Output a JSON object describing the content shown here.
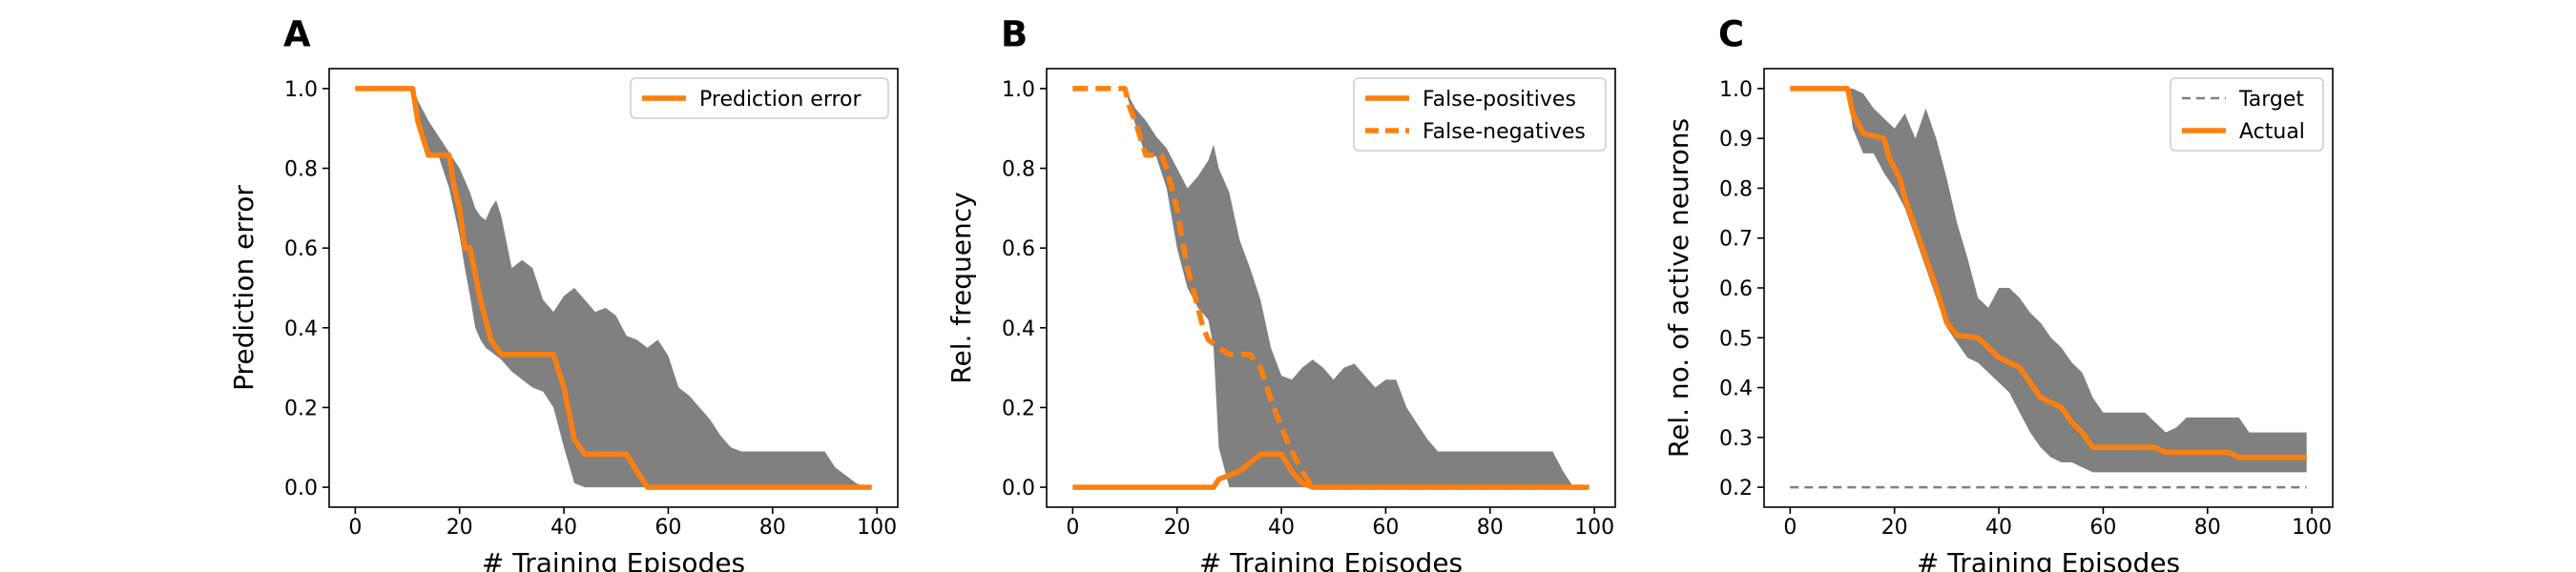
{
  "colors": {
    "line": "#ff7f0e",
    "band": "#808080",
    "target": "#808080"
  },
  "chart_data": [
    {
      "type": "line",
      "panel_letter": "A",
      "xlabel": "# Training Episodes",
      "ylabel": "Prediction error",
      "xlim": [
        -5,
        104
      ],
      "ylim": [
        -0.05,
        1.05
      ],
      "xticks": [
        0,
        20,
        40,
        60,
        80,
        100
      ],
      "xtick_labels": [
        "0",
        "20",
        "40",
        "60",
        "80",
        "100"
      ],
      "yticks": [
        0.0,
        0.2,
        0.4,
        0.6,
        0.8,
        1.0
      ],
      "ytick_labels": [
        "0.0",
        "0.2",
        "0.4",
        "0.6",
        "0.8",
        "1.0"
      ],
      "legend_position": "top-right",
      "series": [
        {
          "name": "Prediction error",
          "style": "solid",
          "x": [
            0,
            11,
            12,
            14,
            18,
            19,
            20,
            21,
            22,
            24,
            26,
            28,
            30,
            32,
            38,
            40,
            42,
            44,
            52,
            54,
            56,
            60,
            80,
            99
          ],
          "y": [
            1.0,
            1.0,
            0.917,
            0.833,
            0.833,
            0.75,
            0.7,
            0.6,
            0.6,
            0.47,
            0.37,
            0.333,
            0.333,
            0.333,
            0.333,
            0.25,
            0.12,
            0.083,
            0.083,
            0.04,
            0.0,
            0.0,
            0.0,
            0.0
          ]
        }
      ],
      "band": {
        "x": [
          0,
          11,
          12,
          14,
          16,
          18,
          20,
          21,
          22,
          23,
          24,
          25,
          26,
          27,
          28,
          30,
          32,
          34,
          36,
          38,
          40,
          42,
          44,
          46,
          48,
          50,
          52,
          54,
          56,
          58,
          60,
          62,
          64,
          66,
          68,
          70,
          72,
          74,
          76,
          78,
          80,
          82,
          84,
          86,
          88,
          90,
          92,
          94,
          96,
          98,
          99
        ],
        "upper": [
          1.0,
          1.0,
          0.97,
          0.92,
          0.88,
          0.84,
          0.8,
          0.77,
          0.74,
          0.7,
          0.68,
          0.67,
          0.7,
          0.72,
          0.68,
          0.55,
          0.57,
          0.55,
          0.47,
          0.44,
          0.48,
          0.5,
          0.47,
          0.44,
          0.45,
          0.43,
          0.38,
          0.37,
          0.35,
          0.37,
          0.33,
          0.25,
          0.23,
          0.2,
          0.17,
          0.13,
          0.1,
          0.09,
          0.09,
          0.09,
          0.09,
          0.09,
          0.09,
          0.09,
          0.09,
          0.09,
          0.05,
          0.03,
          0.01,
          0.0,
          0.0
        ],
        "lower": [
          1.0,
          1.0,
          0.91,
          0.83,
          0.83,
          0.75,
          0.63,
          0.55,
          0.48,
          0.4,
          0.37,
          0.35,
          0.34,
          0.33,
          0.32,
          0.29,
          0.27,
          0.25,
          0.24,
          0.2,
          0.1,
          0.01,
          0.0,
          0.0,
          0.0,
          0.0,
          0.0,
          0.0,
          0.0,
          0.0,
          0.0,
          0.0,
          0.0,
          0.0,
          0.0,
          0.0,
          0.0,
          0.0,
          0.0,
          0.0,
          0.0,
          0.0,
          0.0,
          0.0,
          0.0,
          0.0,
          0.0,
          0.0,
          0.0,
          0.0,
          0.0
        ]
      }
    },
    {
      "type": "line",
      "panel_letter": "B",
      "xlabel": "# Training Episodes",
      "ylabel": "Rel. frequency",
      "xlim": [
        -5,
        104
      ],
      "ylim": [
        -0.05,
        1.05
      ],
      "xticks": [
        0,
        20,
        40,
        60,
        80,
        100
      ],
      "xtick_labels": [
        "0",
        "20",
        "40",
        "60",
        "80",
        "100"
      ],
      "yticks": [
        0.0,
        0.2,
        0.4,
        0.6,
        0.8,
        1.0
      ],
      "ytick_labels": [
        "0.0",
        "0.2",
        "0.4",
        "0.6",
        "0.8",
        "1.0"
      ],
      "legend_position": "top-right",
      "series": [
        {
          "name": "False-positives",
          "style": "solid",
          "x": [
            0,
            27,
            28,
            32,
            36,
            38,
            40,
            42,
            44,
            46,
            60,
            80,
            99
          ],
          "y": [
            0.0,
            0.0,
            0.02,
            0.04,
            0.083,
            0.083,
            0.083,
            0.04,
            0.01,
            0.0,
            0.0,
            0.0,
            0.0
          ]
        },
        {
          "name": "False-negatives",
          "style": "dashed",
          "x": [
            0,
            10,
            11,
            12,
            14,
            17,
            18,
            19,
            20,
            21,
            22,
            23,
            24,
            25,
            26,
            28,
            30,
            34,
            36,
            38,
            40,
            42,
            44,
            46,
            60,
            99
          ],
          "y": [
            1.0,
            1.0,
            0.95,
            0.917,
            0.833,
            0.833,
            0.8,
            0.75,
            0.7,
            0.62,
            0.55,
            0.5,
            0.45,
            0.4,
            0.37,
            0.35,
            0.333,
            0.333,
            0.3,
            0.22,
            0.15,
            0.09,
            0.04,
            0.0,
            0.0,
            0.0
          ]
        }
      ],
      "band": {
        "x": [
          0,
          10,
          12,
          14,
          16,
          18,
          20,
          22,
          24,
          26,
          27,
          28,
          30,
          32,
          34,
          36,
          38,
          40,
          42,
          44,
          46,
          48,
          50,
          52,
          54,
          56,
          58,
          60,
          62,
          64,
          66,
          68,
          70,
          72,
          74,
          76,
          78,
          80,
          82,
          84,
          86,
          88,
          90,
          92,
          94,
          96,
          98,
          99
        ],
        "upper": [
          1.0,
          1.0,
          0.95,
          0.92,
          0.88,
          0.85,
          0.8,
          0.75,
          0.78,
          0.82,
          0.86,
          0.8,
          0.74,
          0.62,
          0.55,
          0.47,
          0.35,
          0.28,
          0.27,
          0.3,
          0.32,
          0.3,
          0.27,
          0.3,
          0.31,
          0.28,
          0.25,
          0.27,
          0.27,
          0.2,
          0.16,
          0.12,
          0.09,
          0.09,
          0.09,
          0.09,
          0.09,
          0.09,
          0.09,
          0.09,
          0.09,
          0.09,
          0.09,
          0.09,
          0.04,
          0.0,
          0.0,
          0.0
        ],
        "lower": [
          1.0,
          1.0,
          0.91,
          0.83,
          0.83,
          0.75,
          0.6,
          0.5,
          0.45,
          0.42,
          0.35,
          0.1,
          0.0,
          0.0,
          0.0,
          0.0,
          0.0,
          0.0,
          0.0,
          0.0,
          0.0,
          0.0,
          0.0,
          0.0,
          0.0,
          0.0,
          0.0,
          0.0,
          0.0,
          0.0,
          0.0,
          0.0,
          0.0,
          0.0,
          0.0,
          0.0,
          0.0,
          0.0,
          0.0,
          0.0,
          0.0,
          0.0,
          0.0,
          0.0,
          0.0,
          0.0,
          0.0,
          0.0
        ]
      }
    },
    {
      "type": "line",
      "panel_letter": "C",
      "xlabel": "# Training Episodes",
      "ylabel": "Rel. no. of active neurons",
      "xlim": [
        -5,
        104
      ],
      "ylim": [
        0.16,
        1.04
      ],
      "xticks": [
        0,
        20,
        40,
        60,
        80,
        100
      ],
      "xtick_labels": [
        "0",
        "20",
        "40",
        "60",
        "80",
        "100"
      ],
      "yticks": [
        0.2,
        0.3,
        0.4,
        0.5,
        0.6,
        0.7,
        0.8,
        0.9,
        1.0
      ],
      "ytick_labels": [
        "0.2",
        "0.3",
        "0.4",
        "0.5",
        "0.6",
        "0.7",
        "0.8",
        "0.9",
        "1.0"
      ],
      "legend_position": "top-right",
      "series": [
        {
          "name": "Target",
          "style": "dashed",
          "x": [
            0,
            99
          ],
          "y": [
            0.2,
            0.2
          ]
        },
        {
          "name": "Actual",
          "style": "solid",
          "x": [
            0,
            11,
            12,
            14,
            18,
            19,
            20,
            21,
            22,
            24,
            26,
            28,
            30,
            32,
            36,
            38,
            40,
            42,
            44,
            46,
            48,
            50,
            52,
            54,
            56,
            58,
            60,
            62,
            70,
            72,
            76,
            80,
            84,
            86,
            90,
            99
          ],
          "y": [
            1.0,
            1.0,
            0.95,
            0.91,
            0.9,
            0.86,
            0.84,
            0.82,
            0.78,
            0.72,
            0.66,
            0.6,
            0.53,
            0.505,
            0.5,
            0.48,
            0.46,
            0.45,
            0.44,
            0.41,
            0.38,
            0.37,
            0.36,
            0.33,
            0.31,
            0.28,
            0.28,
            0.28,
            0.28,
            0.27,
            0.27,
            0.27,
            0.27,
            0.26,
            0.26,
            0.26
          ]
        }
      ],
      "band": {
        "x": [
          0,
          11,
          12,
          14,
          16,
          18,
          20,
          22,
          24,
          26,
          28,
          30,
          32,
          34,
          36,
          38,
          40,
          42,
          44,
          46,
          48,
          50,
          52,
          54,
          56,
          58,
          60,
          62,
          64,
          66,
          68,
          70,
          72,
          74,
          76,
          78,
          80,
          82,
          84,
          86,
          88,
          90,
          92,
          94,
          96,
          98,
          99
        ],
        "upper": [
          1.0,
          1.0,
          1.0,
          0.99,
          0.96,
          0.94,
          0.92,
          0.95,
          0.9,
          0.96,
          0.9,
          0.82,
          0.73,
          0.66,
          0.58,
          0.56,
          0.6,
          0.6,
          0.58,
          0.55,
          0.53,
          0.5,
          0.48,
          0.45,
          0.43,
          0.38,
          0.35,
          0.35,
          0.35,
          0.35,
          0.35,
          0.33,
          0.31,
          0.32,
          0.34,
          0.34,
          0.34,
          0.34,
          0.34,
          0.34,
          0.31,
          0.31,
          0.31,
          0.31,
          0.31,
          0.31,
          0.31
        ],
        "lower": [
          1.0,
          1.0,
          0.92,
          0.87,
          0.87,
          0.83,
          0.8,
          0.76,
          0.7,
          0.64,
          0.58,
          0.52,
          0.49,
          0.46,
          0.45,
          0.43,
          0.41,
          0.39,
          0.35,
          0.31,
          0.28,
          0.26,
          0.25,
          0.25,
          0.24,
          0.23,
          0.23,
          0.23,
          0.23,
          0.23,
          0.23,
          0.23,
          0.23,
          0.23,
          0.23,
          0.23,
          0.23,
          0.23,
          0.23,
          0.23,
          0.23,
          0.23,
          0.23,
          0.23,
          0.23,
          0.23,
          0.23
        ]
      }
    }
  ]
}
